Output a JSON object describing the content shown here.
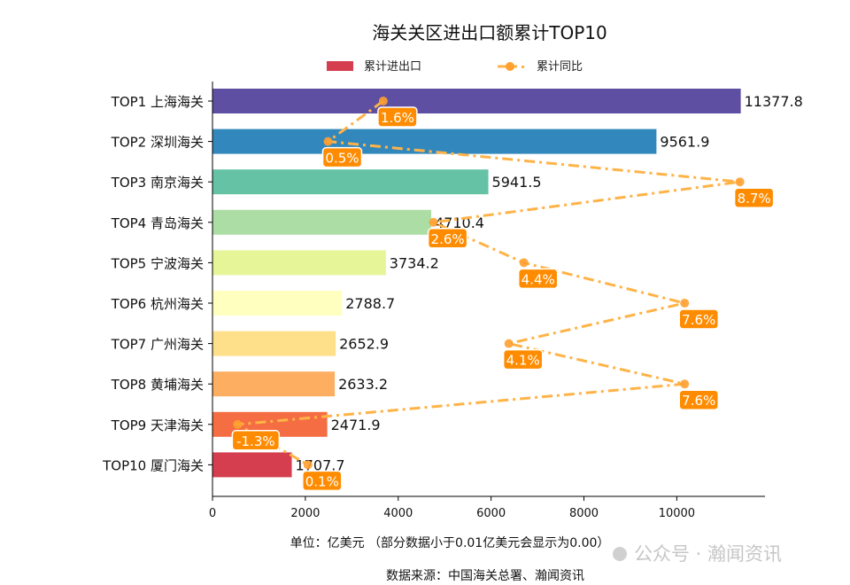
{
  "chart_data": {
    "type": "bar",
    "title": "海关关区进出口额累计TOP10",
    "categories": [
      "TOP1 上海海关",
      "TOP2 深圳海关",
      "TOP3 南京海关",
      "TOP4 青岛海关",
      "TOP5 宁波海关",
      "TOP6 杭州海关",
      "TOP7 广州海关",
      "TOP8 黄埔海关",
      "TOP9 天津海关",
      "TOP10 厦门海关"
    ],
    "series": [
      {
        "name": "累计进出口",
        "type": "bar",
        "values": [
          11377.8,
          9561.9,
          5941.5,
          4710.4,
          3734.2,
          2788.7,
          2652.9,
          2633.2,
          2471.9,
          1707.7
        ],
        "colors": [
          "#5e4fa2",
          "#3288bd",
          "#66c2a5",
          "#abdda4",
          "#e6f598",
          "#ffffbf",
          "#fee08b",
          "#fdae61",
          "#f46d43",
          "#d53e4f"
        ]
      },
      {
        "name": "累计同比",
        "type": "line",
        "values": [
          1.6,
          0.5,
          8.7,
          2.6,
          4.4,
          7.6,
          4.1,
          7.6,
          -1.3,
          0.1
        ],
        "labels": [
          "1.6%",
          "0.5%",
          "8.7%",
          "2.6%",
          "4.4%",
          "7.6%",
          "4.1%",
          "7.6%",
          "-1.3%",
          "0.1%"
        ],
        "color": "#ffb347",
        "label_color": "#ff8c00",
        "xlim": [
          -1.8,
          9.2
        ]
      }
    ],
    "xlim": [
      0,
      11900
    ],
    "xticks": [
      "0",
      "2000",
      "4000",
      "6000",
      "8000",
      "10000"
    ],
    "xlabel": "单位：亿美元  （部分数据小于0.01亿美元会显示为0.00）",
    "legend": "top-center",
    "grid": false
  },
  "source": "数据来源：中国海关总署、瀚闻资讯",
  "watermark": "公众号 · 瀚闻资讯"
}
